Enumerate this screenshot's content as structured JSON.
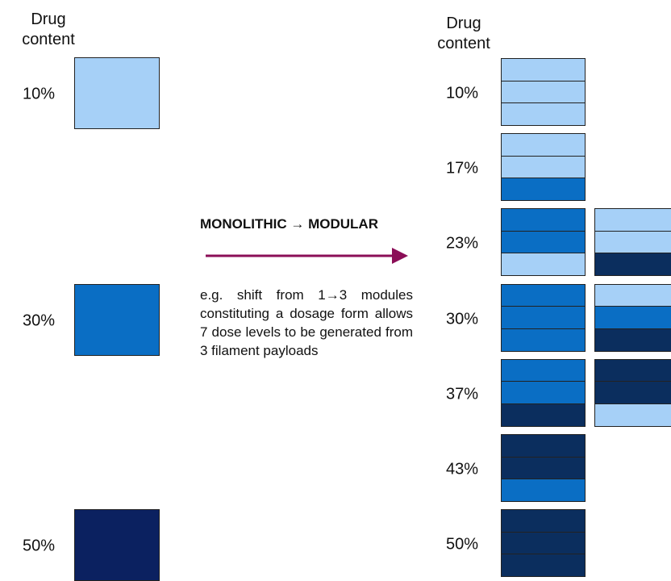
{
  "left": {
    "header": "Drug content",
    "items": [
      {
        "label": "10%",
        "color": "#a6d0f7"
      },
      {
        "label": "30%",
        "color": "#0a6ec4"
      },
      {
        "label": "50%",
        "color": "#0b2160"
      }
    ]
  },
  "middle": {
    "title": "MONOLITHIC → MODULAR",
    "description": "e.g. shift from 1→3 modules constituting a dosage form allows 7 dose levels to be generated from 3 filament payloads"
  },
  "right": {
    "header": "Drug content",
    "rows": [
      {
        "label": "10%",
        "stacks": [
          [
            "#a6d0f7",
            "#a6d0f7",
            "#a6d0f7"
          ]
        ]
      },
      {
        "label": "17%",
        "stacks": [
          [
            "#a6d0f7",
            "#a6d0f7",
            "#0a6ec4"
          ]
        ]
      },
      {
        "label": "23%",
        "stacks": [
          [
            "#0a6ec4",
            "#0a6ec4",
            "#a6d0f7"
          ],
          [
            "#a6d0f7",
            "#a6d0f7",
            "#0b2e5e"
          ]
        ]
      },
      {
        "label": "30%",
        "stacks": [
          [
            "#0a6ec4",
            "#0a6ec4",
            "#0a6ec4"
          ],
          [
            "#a6d0f7",
            "#0a6ec4",
            "#0b2e5e"
          ]
        ]
      },
      {
        "label": "37%",
        "stacks": [
          [
            "#0a6ec4",
            "#0a6ec4",
            "#0b2e5e"
          ],
          [
            "#0b2e5e",
            "#0b2e5e",
            "#a6d0f7"
          ]
        ]
      },
      {
        "label": "43%",
        "stacks": [
          [
            "#0b2e5e",
            "#0b2e5e",
            "#0a6ec4"
          ]
        ]
      },
      {
        "label": "50%",
        "stacks": [
          [
            "#0b2e5e",
            "#0b2e5e",
            "#0b2e5e"
          ]
        ]
      }
    ]
  }
}
